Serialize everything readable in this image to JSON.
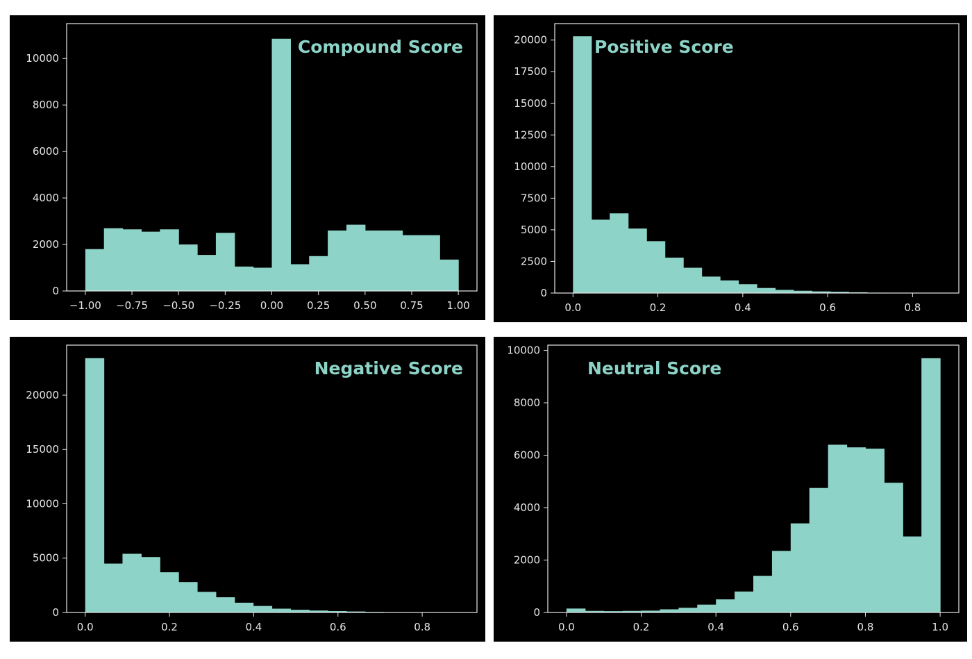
{
  "chart_data": [
    {
      "type": "bar",
      "title": "Compound Score",
      "bin_edges": [
        -1.0,
        -0.9,
        -0.8,
        -0.7,
        -0.6,
        -0.5,
        -0.4,
        -0.3,
        -0.2,
        -0.1,
        0.0,
        0.1,
        0.2,
        0.3,
        0.4,
        0.5,
        0.6,
        0.7,
        0.8,
        0.9,
        1.0
      ],
      "values": [
        1800,
        2700,
        2650,
        2550,
        2650,
        2000,
        1550,
        2500,
        1050,
        1000,
        10850,
        1150,
        1500,
        2600,
        2850,
        2600,
        2600,
        2400,
        2400,
        1350
      ],
      "xticks": [
        -1.0,
        -0.75,
        -0.5,
        -0.25,
        0.0,
        0.25,
        0.5,
        0.75,
        1.0
      ],
      "xtick_labels": [
        "−1.00",
        "−0.75",
        "−0.50",
        "−0.25",
        "0.00",
        "0.25",
        "0.50",
        "0.75",
        "1.00"
      ],
      "yticks": [
        0,
        2000,
        4000,
        6000,
        8000,
        10000
      ],
      "xlim": [
        -1.1,
        1.1
      ],
      "ylim": [
        0,
        11500
      ],
      "title_align": "right"
    },
    {
      "type": "bar",
      "title": "Positive Score",
      "bin_edges": [
        0.0,
        0.0433,
        0.0866,
        0.1299,
        0.1732,
        0.2165,
        0.2598,
        0.3031,
        0.3464,
        0.3897,
        0.433,
        0.4763,
        0.5196,
        0.5629,
        0.6062,
        0.6495,
        0.6928,
        0.7361,
        0.7794,
        0.8227,
        0.866
      ],
      "values": [
        20300,
        5800,
        6300,
        5100,
        4100,
        2800,
        2000,
        1300,
        1000,
        700,
        400,
        250,
        180,
        130,
        100,
        60,
        30,
        20,
        10,
        5
      ],
      "xticks": [
        0.0,
        0.2,
        0.4,
        0.6,
        0.8
      ],
      "xtick_labels": [
        "0.0",
        "0.2",
        "0.4",
        "0.6",
        "0.8"
      ],
      "yticks": [
        0,
        2500,
        5000,
        7500,
        10000,
        12500,
        15000,
        17500,
        20000
      ],
      "xlim": [
        -0.043,
        0.909
      ],
      "ylim": [
        0,
        21300
      ],
      "title_align": "left"
    },
    {
      "type": "bar",
      "title": "Negative Score",
      "bin_edges": [
        0.0,
        0.0443,
        0.0886,
        0.1329,
        0.1772,
        0.2215,
        0.2658,
        0.3101,
        0.3544,
        0.3987,
        0.443,
        0.4873,
        0.5316,
        0.5759,
        0.6202,
        0.6645,
        0.7088,
        0.7531,
        0.7974,
        0.8417,
        0.886
      ],
      "values": [
        23400,
        4500,
        5400,
        5100,
        3700,
        2800,
        1900,
        1400,
        900,
        600,
        350,
        250,
        180,
        130,
        90,
        50,
        30,
        20,
        10,
        5
      ],
      "xticks": [
        0.0,
        0.2,
        0.4,
        0.6,
        0.8
      ],
      "xtick_labels": [
        "0.0",
        "0.2",
        "0.4",
        "0.6",
        "0.8"
      ],
      "yticks": [
        0,
        5000,
        10000,
        15000,
        20000
      ],
      "xlim": [
        -0.044,
        0.93
      ],
      "ylim": [
        0,
        24600
      ],
      "title_align": "right"
    },
    {
      "type": "bar",
      "title": "Neutral Score",
      "bin_edges": [
        0.0,
        0.05,
        0.1,
        0.15,
        0.2,
        0.25,
        0.3,
        0.35,
        0.4,
        0.45,
        0.5,
        0.55,
        0.6,
        0.65,
        0.7,
        0.75,
        0.8,
        0.85,
        0.9,
        0.95,
        1.0
      ],
      "values": [
        150,
        60,
        50,
        60,
        70,
        120,
        180,
        300,
        500,
        800,
        1400,
        2350,
        3400,
        4750,
        6400,
        6300,
        6250,
        4950,
        2900,
        9700
      ],
      "xticks": [
        0.0,
        0.2,
        0.4,
        0.6,
        0.8,
        1.0
      ],
      "xtick_labels": [
        "0.0",
        "0.2",
        "0.4",
        "0.6",
        "0.8",
        "1.0"
      ],
      "yticks": [
        0,
        2000,
        4000,
        6000,
        8000,
        10000
      ],
      "xlim": [
        -0.05,
        1.05
      ],
      "ylim": [
        0,
        10200
      ],
      "title_align": "left"
    }
  ]
}
